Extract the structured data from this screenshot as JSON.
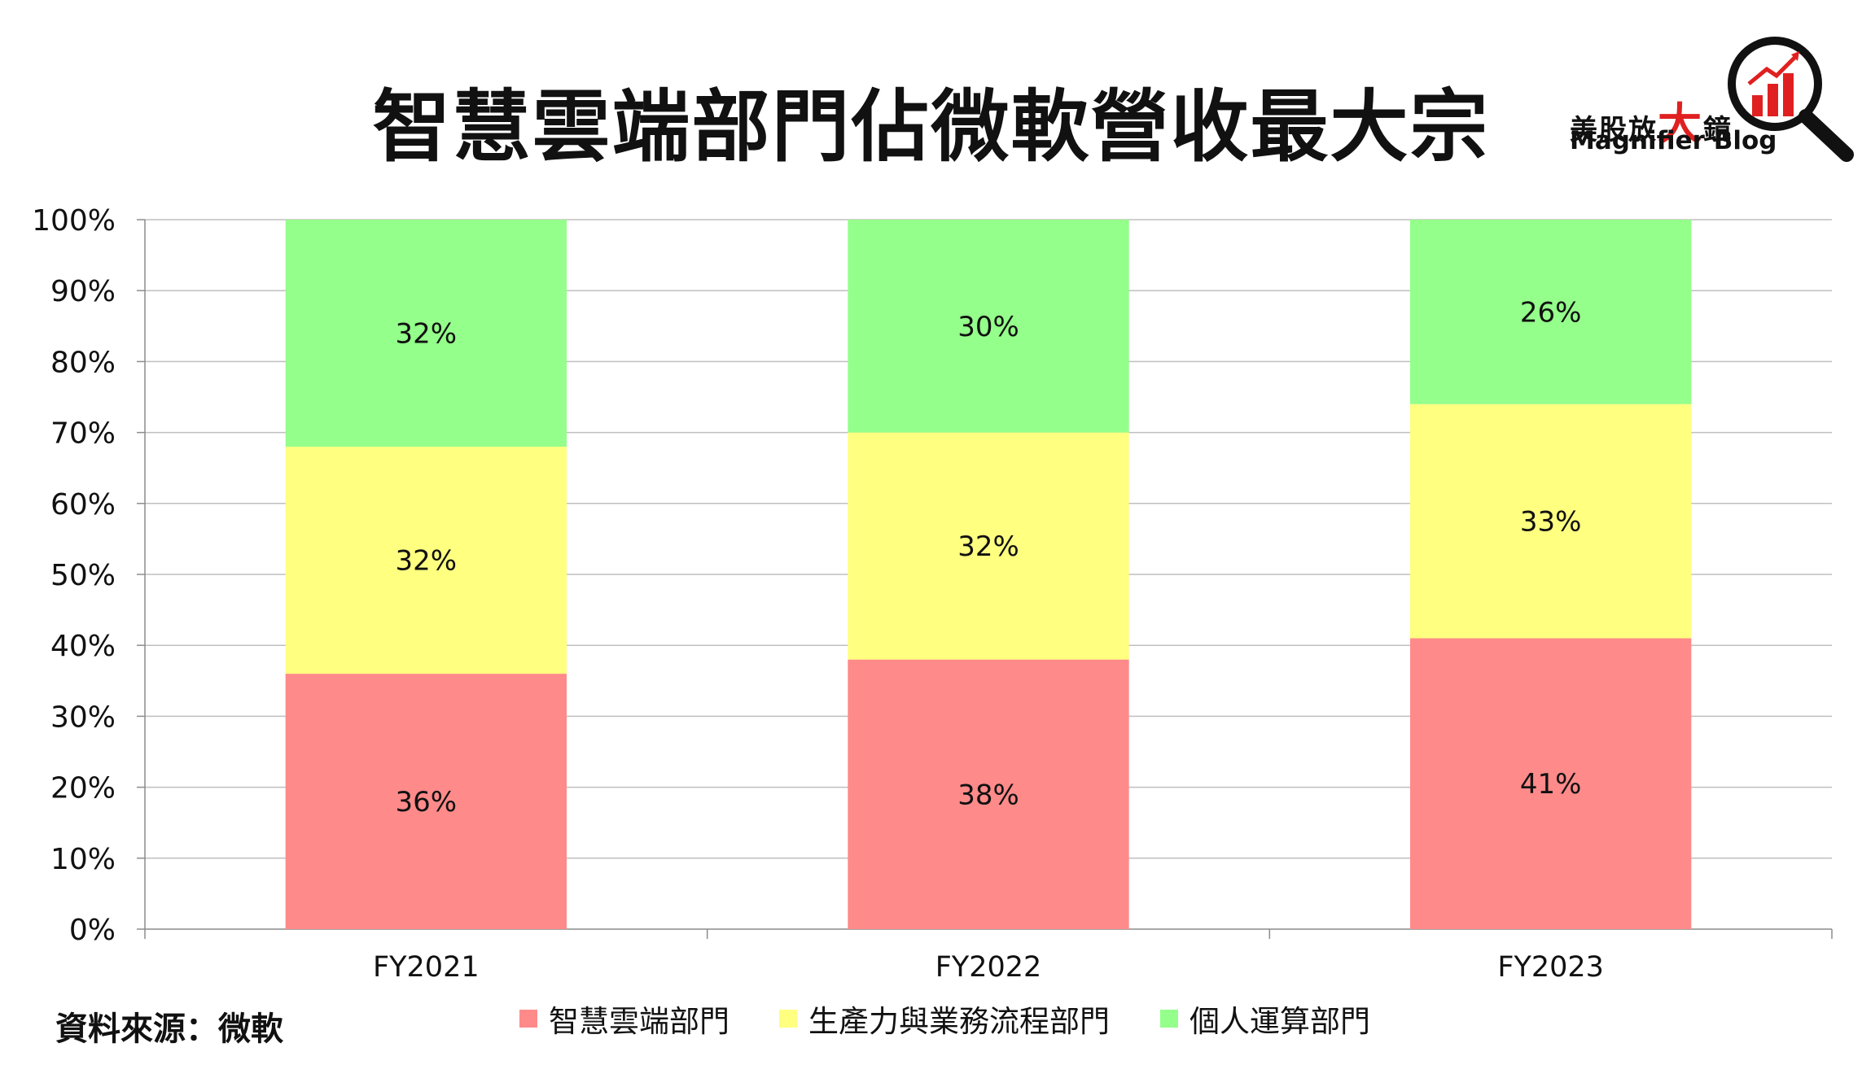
{
  "title": "智慧雲端部門佔微軟營收最大宗",
  "brand": {
    "cn_prefix": "美股放",
    "cn_big": "大",
    "cn_suffix": "鏡",
    "en": "Magnifier Blog",
    "icon": "magnifier-chart-icon",
    "accent": "#e02020"
  },
  "source": "資料來源：微軟",
  "chart_data": {
    "type": "bar",
    "stacked": true,
    "categories": [
      "FY2021",
      "FY2022",
      "FY2023"
    ],
    "series": [
      {
        "name": "智慧雲端部門",
        "values": [
          36,
          38,
          41
        ],
        "labels": [
          "36%",
          "38%",
          "41%"
        ],
        "color": "#ff8a8a"
      },
      {
        "name": "生產力與業務流程部門",
        "values": [
          32,
          32,
          33
        ],
        "labels": [
          "32%",
          "32%",
          "33%"
        ],
        "color": "#ffff80"
      },
      {
        "name": "個人運算部門",
        "values": [
          32,
          30,
          26
        ],
        "labels": [
          "32%",
          "30%",
          "26%"
        ],
        "color": "#94ff8a"
      }
    ],
    "ylim": [
      0,
      100
    ],
    "yticks": [
      "0%",
      "10%",
      "20%",
      "30%",
      "40%",
      "50%",
      "60%",
      "70%",
      "80%",
      "90%",
      "100%"
    ],
    "grid": true,
    "legend_position": "bottom"
  }
}
